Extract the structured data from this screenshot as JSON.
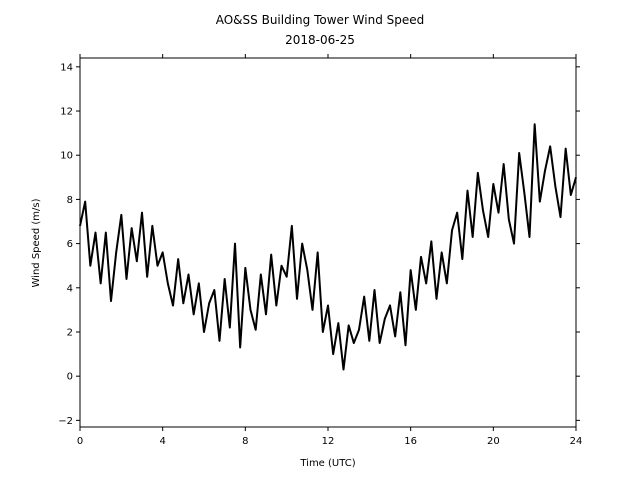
{
  "chart_data": {
    "type": "line",
    "title": "AO&SS Building Tower Wind Speed",
    "subtitle": "2018-06-25",
    "xlabel": "Time (UTC)",
    "ylabel": "Wind Speed (m/s)",
    "xlim": [
      0,
      24
    ],
    "ylim": [
      -2.3,
      14.4
    ],
    "xticks": [
      0,
      4,
      8,
      12,
      16,
      20,
      24
    ],
    "yticks": [
      -2,
      0,
      2,
      4,
      6,
      8,
      10,
      12,
      14
    ],
    "grid": false,
    "line_color": "#000000",
    "series": [
      {
        "x": [
          0.0,
          0.25,
          0.5,
          0.75,
          1.0,
          1.25,
          1.5,
          1.75,
          2.0,
          2.25,
          2.5,
          2.75,
          3.0,
          3.25,
          3.5,
          3.75,
          4.0,
          4.25,
          4.5,
          4.75,
          5.0,
          5.25,
          5.5,
          5.75,
          6.0,
          6.25,
          6.5,
          6.75,
          7.0,
          7.25,
          7.5,
          7.75,
          8.0,
          8.25,
          8.5,
          8.75,
          9.0,
          9.25,
          9.5,
          9.75,
          10.0,
          10.25,
          10.5,
          10.75,
          11.0,
          11.25,
          11.5,
          11.75,
          12.0,
          12.25,
          12.5,
          12.75,
          13.0,
          13.25,
          13.5,
          13.75,
          14.0,
          14.25,
          14.5,
          14.75,
          15.0,
          15.25,
          15.5,
          15.75,
          16.0,
          16.25,
          16.5,
          16.75,
          17.0,
          17.25,
          17.5,
          17.75,
          18.0,
          18.25,
          18.5,
          18.75,
          19.0,
          19.25,
          19.5,
          19.75,
          20.0,
          20.25,
          20.5,
          20.75,
          21.0,
          21.25,
          21.5,
          21.75,
          22.0,
          22.25,
          22.5,
          22.75,
          23.0,
          23.25,
          23.5,
          23.75,
          24.0
        ],
        "values": [
          6.8,
          7.9,
          5.0,
          6.5,
          4.2,
          6.5,
          3.4,
          5.6,
          7.3,
          4.4,
          6.7,
          5.2,
          7.4,
          4.5,
          6.8,
          5.0,
          5.6,
          4.2,
          3.2,
          5.3,
          3.3,
          4.6,
          2.8,
          4.2,
          2.0,
          3.3,
          3.9,
          1.6,
          4.4,
          2.2,
          6.0,
          1.3,
          4.9,
          3.0,
          2.1,
          4.6,
          2.8,
          5.5,
          3.2,
          5.0,
          4.5,
          6.8,
          3.5,
          6.0,
          4.8,
          3.0,
          5.6,
          2.0,
          3.2,
          1.0,
          2.4,
          0.3,
          2.3,
          1.5,
          2.1,
          3.6,
          1.6,
          3.9,
          1.5,
          2.6,
          3.2,
          1.8,
          3.8,
          1.4,
          4.8,
          3.0,
          5.4,
          4.2,
          6.1,
          3.5,
          5.6,
          4.2,
          6.6,
          7.4,
          5.3,
          8.4,
          6.3,
          9.2,
          7.5,
          6.3,
          8.7,
          7.4,
          9.6,
          7.1,
          6.0,
          10.1,
          8.3,
          6.3,
          11.4,
          7.9,
          9.3,
          10.4,
          8.6,
          7.2,
          10.3,
          8.2,
          9.0
        ]
      }
    ]
  }
}
